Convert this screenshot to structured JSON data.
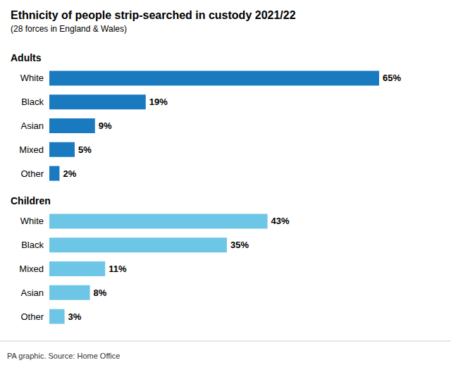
{
  "chart_data": {
    "type": "bar",
    "orientation": "horizontal",
    "title": "Ethnicity of people strip-searched in custody 2021/22",
    "subtitle": "(28 forces in England & Wales)",
    "annotations": [
      "PA graphic. Source: Home Office"
    ],
    "xlim": [
      0,
      75
    ],
    "tick_labels": "y",
    "grid": false,
    "data_labels": true,
    "series": [
      {
        "name": "Adults",
        "color": "#1a7abf",
        "categories": [
          "White",
          "Black",
          "Asian",
          "Mixed",
          "Other"
        ],
        "values": [
          65,
          19,
          9,
          5,
          2
        ],
        "value_labels": [
          "65%",
          "19%",
          "9%",
          "5%",
          "2%"
        ]
      },
      {
        "name": "Children",
        "color": "#6ec6e6",
        "categories": [
          "White",
          "Black",
          "Mixed",
          "Asian",
          "Other"
        ],
        "values": [
          43,
          35,
          11,
          8,
          3
        ],
        "value_labels": [
          "43%",
          "35%",
          "11%",
          "8%",
          "3%"
        ]
      }
    ]
  }
}
